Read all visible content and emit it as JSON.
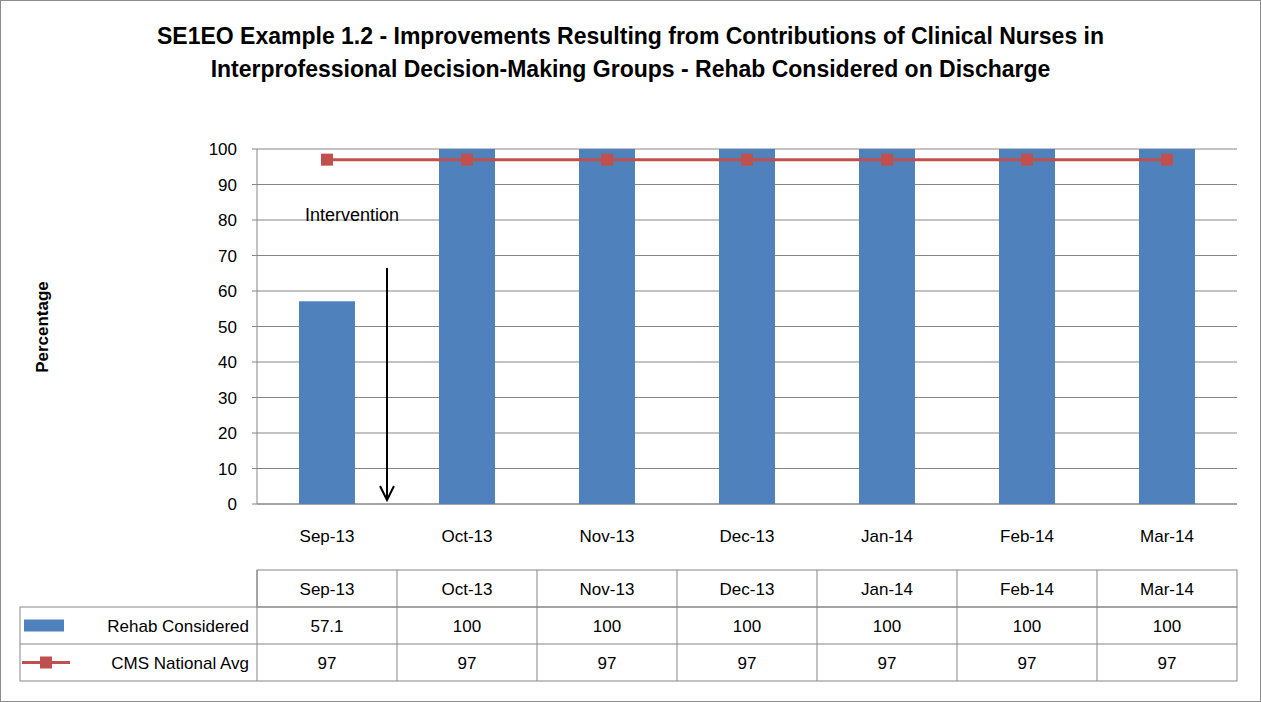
{
  "chart_data": {
    "type": "bar",
    "title": "SE1EO Example 1.2 - Improvements Resulting from Contributions of Clinical Nurses in Interprofessional Decision-Making Groups - Rehab Considered on Discharge",
    "y_label": "Percentage",
    "categories": [
      "Sep-13",
      "Oct-13",
      "Nov-13",
      "Dec-13",
      "Jan-14",
      "Feb-14",
      "Mar-14"
    ],
    "series": [
      {
        "name": "Rehab Considered",
        "type": "bar",
        "color": "#4f81bd",
        "values": [
          57.1,
          100,
          100,
          100,
          100,
          100,
          100
        ]
      },
      {
        "name": "CMS National Avg",
        "type": "line",
        "color": "#c0504d",
        "marker": "square",
        "values": [
          97,
          97,
          97,
          97,
          97,
          97,
          97
        ]
      }
    ],
    "ylim": [
      0,
      100
    ],
    "yticks": [
      0,
      10,
      20,
      30,
      40,
      50,
      60,
      70,
      80,
      90,
      100
    ],
    "grid": true,
    "annotations": [
      {
        "text": "Intervention"
      }
    ]
  }
}
